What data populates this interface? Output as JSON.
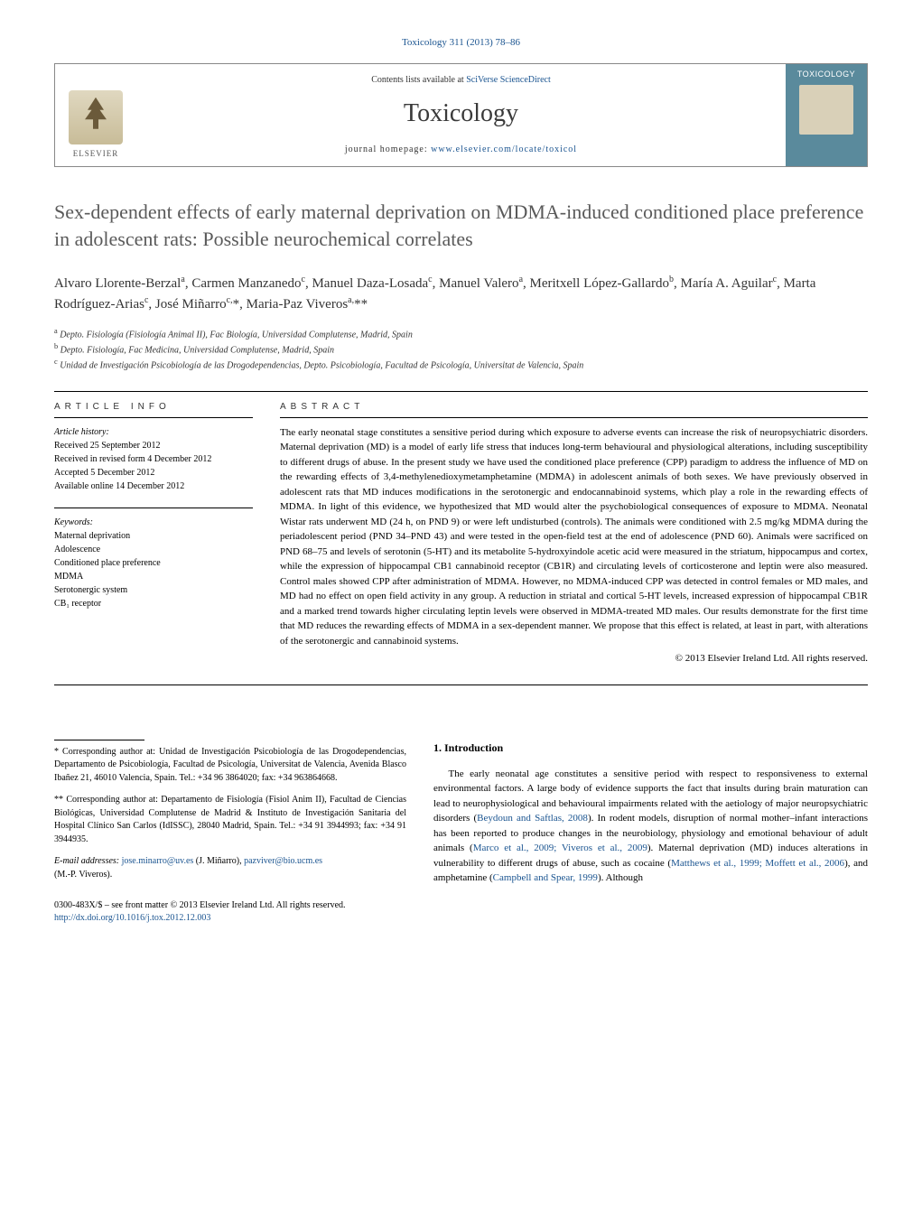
{
  "journal_ref": "Toxicology 311 (2013) 78–86",
  "header": {
    "contents_prefix": "Contents lists available at ",
    "contents_link": "SciVerse ScienceDirect",
    "journal_name": "Toxicology",
    "homepage_prefix": "journal homepage: ",
    "homepage_link": "www.elsevier.com/locate/toxicol",
    "elsevier_label": "ELSEVIER",
    "cover_label": "TOXICOLOGY"
  },
  "title": "Sex-dependent effects of early maternal deprivation on MDMA-induced conditioned place preference in adolescent rats: Possible neurochemical correlates",
  "authors_html": "Alvaro Llorente-Berzal<sup>a</sup>, Carmen Manzanedo<sup>c</sup>, Manuel Daza-Losada<sup>c</sup>, Manuel Valero<sup>a</sup>, Meritxell López-Gallardo<sup>b</sup>, María A. Aguilar<sup>c</sup>, Marta Rodríguez-Arias<sup>c</sup>, José Miñarro<sup>c,</sup>*, Maria-Paz Viveros<sup>a,</sup>**",
  "affiliations": [
    {
      "sup": "a",
      "text": "Depto. Fisiología (Fisiología Animal II), Fac Biología, Universidad Complutense, Madrid, Spain"
    },
    {
      "sup": "b",
      "text": "Depto. Fisiología, Fac Medicina, Universidad Complutense, Madrid, Spain"
    },
    {
      "sup": "c",
      "text": "Unidad de Investigación Psicobiología de las Drogodependencias, Depto. Psicobiología, Facultad de Psicología, Universitat de Valencia, Spain"
    }
  ],
  "article_info_heading": "ARTICLE INFO",
  "history_label": "Article history:",
  "history": [
    "Received 25 September 2012",
    "Received in revised form 4 December 2012",
    "Accepted 5 December 2012",
    "Available online 14 December 2012"
  ],
  "keywords_label": "Keywords:",
  "keywords": [
    "Maternal deprivation",
    "Adolescence",
    "Conditioned place preference",
    "MDMA",
    "Serotonergic system",
    "CB₁ receptor"
  ],
  "abstract_heading": "ABSTRACT",
  "abstract": "The early neonatal stage constitutes a sensitive period during which exposure to adverse events can increase the risk of neuropsychiatric disorders. Maternal deprivation (MD) is a model of early life stress that induces long-term behavioural and physiological alterations, including susceptibility to different drugs of abuse. In the present study we have used the conditioned place preference (CPP) paradigm to address the influence of MD on the rewarding effects of 3,4-methylenedioxymetamphetamine (MDMA) in adolescent animals of both sexes. We have previously observed in adolescent rats that MD induces modifications in the serotonergic and endocannabinoid systems, which play a role in the rewarding effects of MDMA. In light of this evidence, we hypothesized that MD would alter the psychobiological consequences of exposure to MDMA. Neonatal Wistar rats underwent MD (24 h, on PND 9) or were left undisturbed (controls). The animals were conditioned with 2.5 mg/kg MDMA during the periadolescent period (PND 34–PND 43) and were tested in the open-field test at the end of adolescence (PND 60). Animals were sacrificed on PND 68–75 and levels of serotonin (5-HT) and its metabolite 5-hydroxyindole acetic acid were measured in the striatum, hippocampus and cortex, while the expression of hippocampal CB1 cannabinoid receptor (CB1R) and circulating levels of corticosterone and leptin were also measured. Control males showed CPP after administration of MDMA. However, no MDMA-induced CPP was detected in control females or MD males, and MD had no effect on open field activity in any group. A reduction in striatal and cortical 5-HT levels, increased expression of hippocampal CB1R and a marked trend towards higher circulating leptin levels were observed in MDMA-treated MD males. Our results demonstrate for the first time that MD reduces the rewarding effects of MDMA in a sex-dependent manner. We propose that this effect is related, at least in part, with alterations of the serotonergic and cannabinoid systems.",
  "copyright": "© 2013 Elsevier Ireland Ltd. All rights reserved.",
  "intro_heading": "1. Introduction",
  "intro_body_pre": "The early neonatal age constitutes a sensitive period with respect to responsiveness to external environmental factors. A large body of evidence supports the fact that insults during brain maturation can lead to neurophysiological and behavioural impairments related with the aetiology of major neuropsychiatric disorders (",
  "intro_ref1": "Beydoun and Saftlas, 2008",
  "intro_body_mid1": "). In rodent models, disruption of normal mother–infant interactions has been reported to produce changes in the neurobiology, physiology and emotional behaviour of adult animals (",
  "intro_ref2": "Marco et al., 2009; Viveros et al., 2009",
  "intro_body_mid2": "). Maternal deprivation (MD) induces alterations in vulnerability to different drugs of abuse, such as cocaine (",
  "intro_ref3": "Matthews et al., 1999; Moffett et al., 2006",
  "intro_body_mid3": "), and amphetamine (",
  "intro_ref4": "Campbell and Spear, 1999",
  "intro_body_post": "). Although",
  "footnotes": {
    "star": "* Corresponding author at: Unidad de Investigación Psicobiología de las Drogodependencias, Departamento de Psicobiología, Facultad de Psicología, Universitat de Valencia, Avenida Blasco Ibañez 21, 46010 Valencia, Spain. Tel.: +34 96 3864020; fax: +34 963864668.",
    "dstar": "** Corresponding author at: Departamento de Fisiología (Fisiol Anim II), Facultad de Ciencias Biológicas, Universidad Complutense de Madrid & Instituto de Investigación Sanitaria del Hospital Clínico San Carlos (IdISSC), 28040 Madrid, Spain. Tel.: +34 91 3944993; fax: +34 91 3944935.",
    "email_label": "E-mail addresses: ",
    "email1": "jose.minarro@uv.es",
    "email1_name": " (J. Miñarro), ",
    "email2": "pazviver@bio.ucm.es",
    "email2_name": "(M.-P. Viveros)."
  },
  "bottom": {
    "line1": "0300-483X/$ – see front matter © 2013 Elsevier Ireland Ltd. All rights reserved.",
    "doi": "http://dx.doi.org/10.1016/j.tox.2012.12.003"
  },
  "colors": {
    "link": "#1a5490",
    "title_gray": "#5a5a5a",
    "cover_bg": "#5a8a9c"
  }
}
